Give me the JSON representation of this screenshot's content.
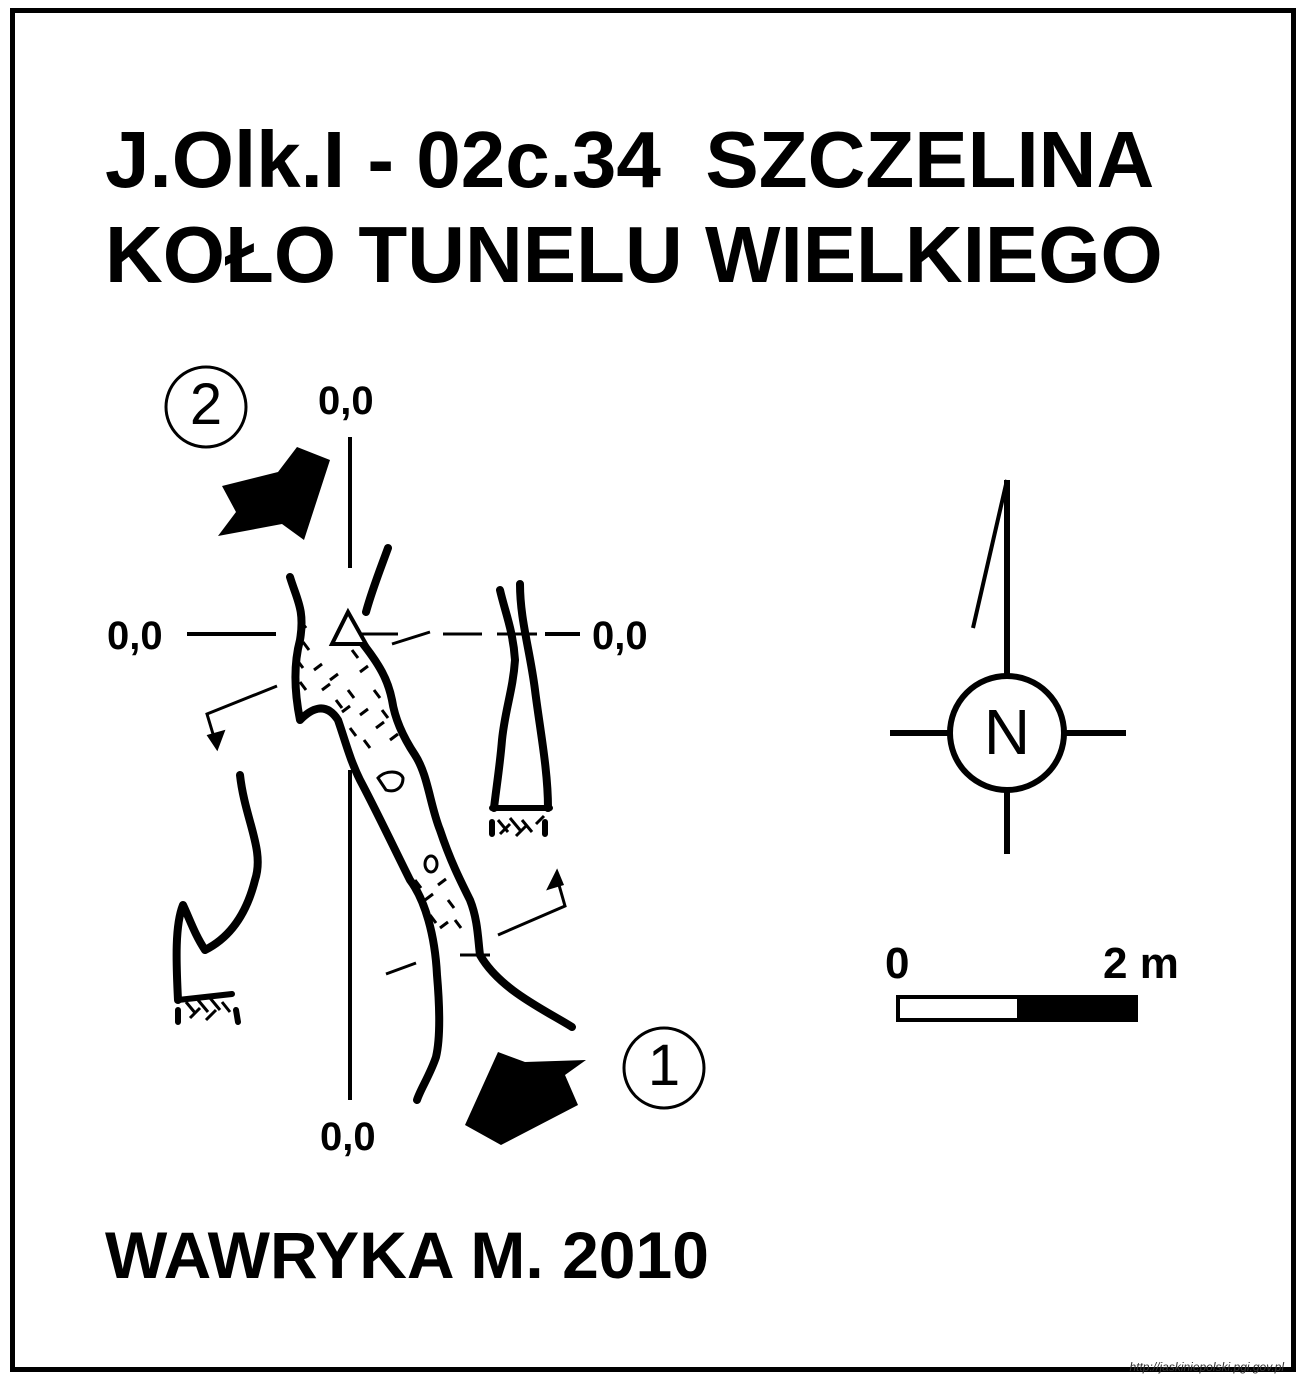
{
  "map": {
    "title_line1": "J.Olk.I - 02c.34  SZCZELINA",
    "title_line2": "KOŁO TUNELU WIELKIEGO",
    "author": "WAWRYKA M. 2010",
    "source_url": "http://jaskiniepolski.pgi.gov.pl",
    "grid_labels": {
      "top": "0,0",
      "left": "0,0",
      "right": "0,0",
      "bottom": "0,0"
    },
    "entrances": [
      {
        "number": "1",
        "symbol": "①"
      },
      {
        "number": "2",
        "symbol": "②"
      }
    ],
    "compass": {
      "letter": "N",
      "icon": "north-arrow-icon"
    },
    "scale_bar": {
      "start_label": "0",
      "end_label": "2 m",
      "length_m": 2
    },
    "colors": {
      "ink": "#000000",
      "paper": "#ffffff"
    }
  }
}
